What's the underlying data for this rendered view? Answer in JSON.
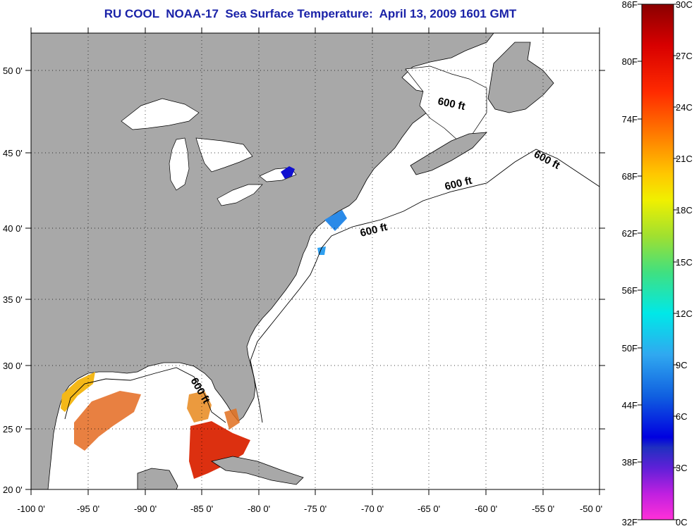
{
  "title": "RU COOL  NOAA-17  Sea Surface Temperature:  April 13, 2009 1601 GMT",
  "map": {
    "lat_labels": [
      "50 0'",
      "45 0'",
      "40 0'",
      "35 0'",
      "30 0'",
      "25 0'",
      "20 0'"
    ],
    "lon_labels": [
      "-100 0'",
      "-95 0'",
      "-90 0'",
      "-85 0'",
      "-80 0'",
      "-75 0'",
      "-70 0'",
      "-65 0'",
      "-60 0'",
      "-55 0'",
      "-50 0'"
    ],
    "isobath_label": "600 ft",
    "land_color": "#a8a8a8",
    "ocean_color": "#ffffff"
  },
  "colorbar": {
    "fahrenheit": [
      "86F",
      "80F",
      "74F",
      "68F",
      "62F",
      "56F",
      "50F",
      "44F",
      "38F",
      "32F"
    ],
    "celsius": [
      "30C",
      "27C",
      "24C",
      "21C",
      "18C",
      "15C",
      "12C",
      "9C",
      "6C",
      "3C",
      "0C"
    ]
  }
}
